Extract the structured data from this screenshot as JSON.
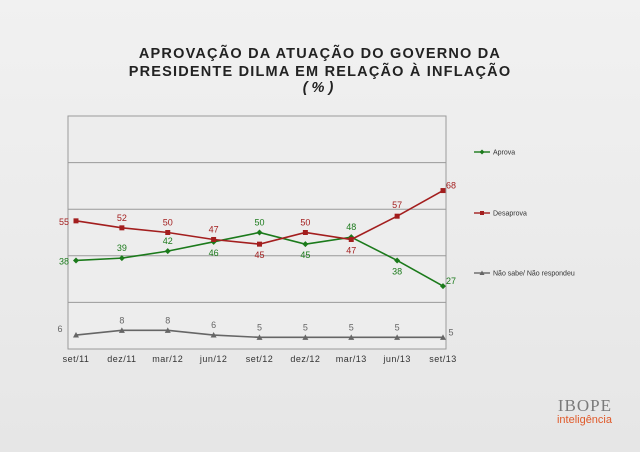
{
  "title": {
    "line1": "APROVAÇÃO DA ATUAÇÃO DO GOVERNO DA",
    "line2": "PRESIDENTE DILMA EM RELAÇÃO À INFLAÇÃO",
    "line3": "(%)"
  },
  "logo": {
    "main": "IBOPE",
    "sub": "inteligência"
  },
  "chart_data": {
    "type": "line",
    "categories": [
      "set/11",
      "dez/11",
      "mar/12",
      "jun/12",
      "set/12",
      "dez/12",
      "mar/13",
      "jun/13",
      "set/13"
    ],
    "series": [
      {
        "name": "Aprova",
        "color": "#1b7a1b",
        "marker": "diamond",
        "values": [
          38,
          39,
          42,
          46,
          50,
          45,
          48,
          38,
          27
        ]
      },
      {
        "name": "Desaprova",
        "color": "#a31e1e",
        "marker": "square",
        "values": [
          55,
          52,
          50,
          47,
          45,
          50,
          47,
          57,
          68
        ]
      },
      {
        "name": "Não sabe/ Não respondeu",
        "color": "#666666",
        "marker": "triangle",
        "values": [
          6,
          8,
          8,
          6,
          5,
          5,
          5,
          5,
          5
        ]
      }
    ],
    "ylim": [
      0,
      100
    ],
    "grid": true,
    "legend": "right"
  }
}
